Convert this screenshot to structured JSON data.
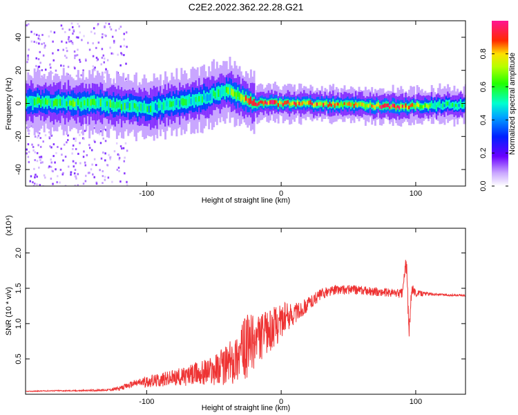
{
  "page": {
    "title": "C2E2.2022.362.22.28.G21"
  },
  "colors": {
    "snr_line": "#ee3333",
    "frame": "#000000"
  },
  "chart_data": [
    {
      "type": "heatmap",
      "xlabel": "Height of straight line (km)",
      "ylabel": "Frequency (Hz)",
      "xlim": [
        -190,
        137
      ],
      "ylim": [
        -50,
        50
      ],
      "xticks": [
        -100,
        0,
        100
      ],
      "yticks": [
        -40,
        -20,
        0,
        20,
        40
      ],
      "colorbar": {
        "label": "Normalized spectral amplitude",
        "range": [
          0.0,
          1.0
        ],
        "ticks": [
          "0.0",
          "0.2",
          "0.4",
          "0.6",
          "0.8"
        ],
        "colormap": "rainbow (white-violet-blue-cyan-green-yellow-red-pink)"
      },
      "description_points": [
        {
          "x": -180,
          "freq_center": 1,
          "amp": 0.55
        },
        {
          "x": -140,
          "freq_center": 0,
          "amp": 0.6
        },
        {
          "x": -100,
          "freq_center": -3,
          "amp": 0.5
        },
        {
          "x": -60,
          "freq_center": 3,
          "amp": 0.5
        },
        {
          "x": -40,
          "freq_center": 8,
          "amp": 0.6
        },
        {
          "x": -20,
          "freq_center": 0,
          "amp": 0.9
        },
        {
          "x": 10,
          "freq_center": 0,
          "amp": 0.85
        },
        {
          "x": 60,
          "freq_center": -1,
          "amp": 0.75
        },
        {
          "x": 80,
          "freq_center": -2,
          "amp": 0.95
        },
        {
          "x": 120,
          "freq_center": -1,
          "amp": 0.5
        }
      ]
    },
    {
      "type": "line",
      "xlabel": "Height of straight line (km)",
      "ylabel": "SNR (10 * v/v)",
      "y_multiplier": "(x10⁴)",
      "xlim": [
        -190,
        137
      ],
      "ylim": [
        0,
        23500
      ],
      "xticks": [
        -100,
        0,
        100
      ],
      "yticks": [
        5000,
        10000,
        15000,
        20000
      ],
      "ytick_labels": [
        "0.5",
        "1.0",
        "1.5",
        "2.0"
      ],
      "series": [
        {
          "x": [
            -190,
            -170,
            -150,
            -130,
            -120,
            -110,
            -100,
            -90,
            -80,
            -70,
            -60,
            -50,
            -40,
            -35,
            -30,
            -25,
            -20,
            -15,
            -10,
            -5,
            0,
            5,
            10,
            15,
            20,
            25,
            30,
            40,
            50,
            60,
            70,
            80,
            90,
            93,
            95,
            97,
            100,
            110,
            120,
            130,
            137
          ],
          "y": [
            400,
            500,
            500,
            600,
            800,
            1500,
            1800,
            2000,
            2300,
            2600,
            3000,
            3500,
            4200,
            5000,
            6000,
            6800,
            7500,
            8000,
            8800,
            9500,
            10500,
            11000,
            11500,
            12000,
            12800,
            13500,
            14200,
            14800,
            14800,
            14700,
            14500,
            14400,
            14300,
            19000,
            8500,
            15000,
            14300,
            14200,
            14100,
            14000,
            14000
          ],
          "noise": [
            50,
            80,
            100,
            150,
            300,
            500,
            800,
            1000,
            1200,
            1400,
            1800,
            2200,
            3000,
            3500,
            4000,
            4500,
            4000,
            3500,
            3000,
            3000,
            2500,
            2000,
            1500,
            1200,
            1000,
            900,
            800,
            700,
            700,
            650,
            600,
            600,
            700,
            1500,
            1500,
            700,
            500,
            200,
            150,
            150,
            150
          ]
        }
      ]
    }
  ]
}
